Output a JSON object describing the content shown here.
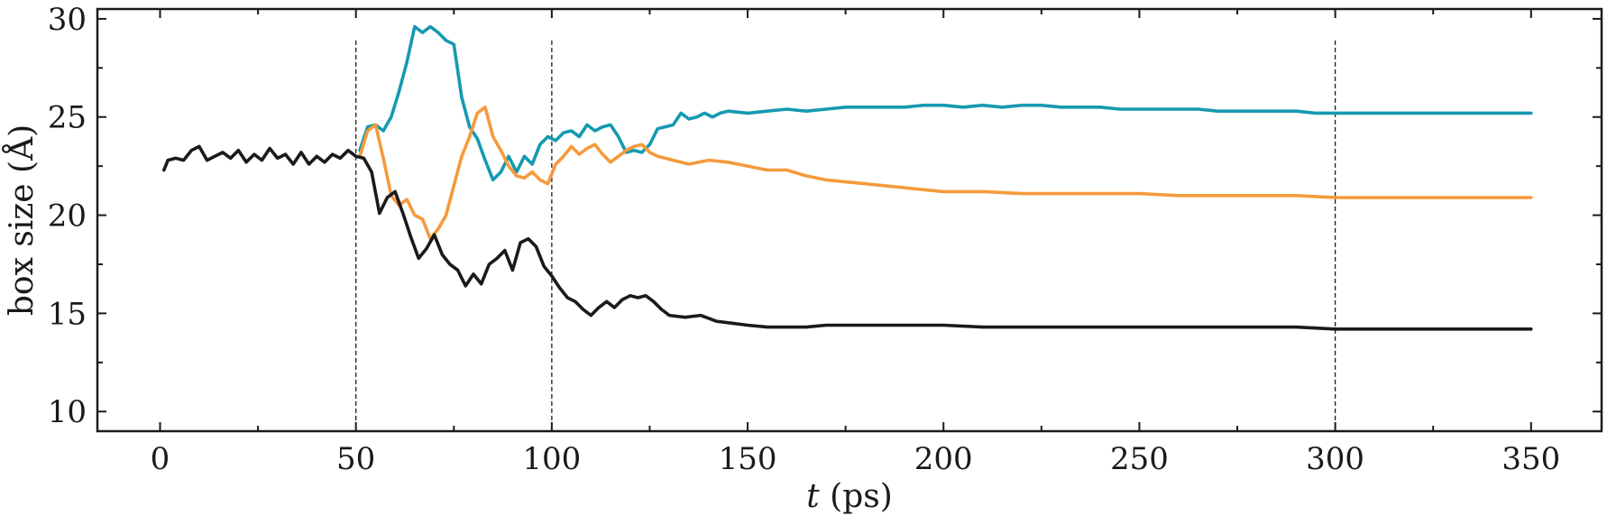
{
  "chart_data": {
    "type": "line",
    "xlabel_italic": "t",
    "xlabel_rest": " (ps)",
    "ylabel": "box size (Å)",
    "xlim": [
      -16,
      368
    ],
    "ylim": [
      9,
      30.5
    ],
    "xticks": [
      0,
      50,
      100,
      150,
      200,
      250,
      300,
      350
    ],
    "yticks": [
      10,
      15,
      20,
      25,
      30
    ],
    "vlines": [
      50,
      100,
      300
    ],
    "grid": false,
    "series": [
      {
        "color": "#159ab0",
        "points": [
          [
            51,
            23.3
          ],
          [
            53,
            24.5
          ],
          [
            55,
            24.6
          ],
          [
            57,
            24.3
          ],
          [
            59,
            25.0
          ],
          [
            61,
            26.3
          ],
          [
            63,
            27.8
          ],
          [
            65,
            29.6
          ],
          [
            67,
            29.3
          ],
          [
            69,
            29.6
          ],
          [
            71,
            29.3
          ],
          [
            73,
            28.9
          ],
          [
            75,
            28.7
          ],
          [
            77,
            26.0
          ],
          [
            79,
            24.5
          ],
          [
            81,
            23.9
          ],
          [
            83,
            22.8
          ],
          [
            85,
            21.8
          ],
          [
            87,
            22.2
          ],
          [
            89,
            23.0
          ],
          [
            91,
            22.2
          ],
          [
            93,
            23.0
          ],
          [
            95,
            22.6
          ],
          [
            97,
            23.6
          ],
          [
            99,
            24.0
          ],
          [
            101,
            23.8
          ],
          [
            103,
            24.2
          ],
          [
            105,
            24.3
          ],
          [
            107,
            24.0
          ],
          [
            109,
            24.6
          ],
          [
            111,
            24.3
          ],
          [
            113,
            24.5
          ],
          [
            115,
            24.6
          ],
          [
            117,
            24.0
          ],
          [
            119,
            23.2
          ],
          [
            121,
            23.3
          ],
          [
            123,
            23.2
          ],
          [
            125,
            23.6
          ],
          [
            127,
            24.4
          ],
          [
            129,
            24.5
          ],
          [
            131,
            24.6
          ],
          [
            133,
            25.2
          ],
          [
            135,
            24.9
          ],
          [
            137,
            25.0
          ],
          [
            139,
            25.2
          ],
          [
            141,
            25.0
          ],
          [
            143,
            25.2
          ],
          [
            145,
            25.3
          ],
          [
            150,
            25.2
          ],
          [
            155,
            25.3
          ],
          [
            160,
            25.4
          ],
          [
            165,
            25.3
          ],
          [
            170,
            25.4
          ],
          [
            175,
            25.5
          ],
          [
            180,
            25.5
          ],
          [
            185,
            25.5
          ],
          [
            190,
            25.5
          ],
          [
            195,
            25.6
          ],
          [
            200,
            25.6
          ],
          [
            205,
            25.5
          ],
          [
            210,
            25.6
          ],
          [
            215,
            25.5
          ],
          [
            220,
            25.6
          ],
          [
            225,
            25.6
          ],
          [
            230,
            25.5
          ],
          [
            235,
            25.5
          ],
          [
            240,
            25.5
          ],
          [
            245,
            25.4
          ],
          [
            250,
            25.4
          ],
          [
            255,
            25.4
          ],
          [
            260,
            25.4
          ],
          [
            265,
            25.4
          ],
          [
            270,
            25.3
          ],
          [
            275,
            25.3
          ],
          [
            280,
            25.3
          ],
          [
            285,
            25.3
          ],
          [
            290,
            25.3
          ],
          [
            295,
            25.2
          ],
          [
            300,
            25.2
          ],
          [
            310,
            25.2
          ],
          [
            320,
            25.2
          ],
          [
            330,
            25.2
          ],
          [
            340,
            25.2
          ],
          [
            350,
            25.2
          ]
        ]
      },
      {
        "color": "#f59a3c",
        "points": [
          [
            51,
            23.0
          ],
          [
            53,
            24.3
          ],
          [
            55,
            24.6
          ],
          [
            57,
            22.9
          ],
          [
            59,
            21.0
          ],
          [
            61,
            20.5
          ],
          [
            63,
            20.8
          ],
          [
            65,
            20.0
          ],
          [
            67,
            19.8
          ],
          [
            69,
            18.8
          ],
          [
            71,
            19.3
          ],
          [
            73,
            20.0
          ],
          [
            75,
            21.5
          ],
          [
            77,
            23.0
          ],
          [
            79,
            24.0
          ],
          [
            81,
            25.2
          ],
          [
            83,
            25.5
          ],
          [
            85,
            24.0
          ],
          [
            87,
            23.3
          ],
          [
            89,
            22.5
          ],
          [
            91,
            22.0
          ],
          [
            93,
            21.9
          ],
          [
            95,
            22.2
          ],
          [
            97,
            21.8
          ],
          [
            99,
            21.6
          ],
          [
            101,
            22.6
          ],
          [
            103,
            23.0
          ],
          [
            105,
            23.5
          ],
          [
            107,
            23.1
          ],
          [
            109,
            23.4
          ],
          [
            111,
            23.6
          ],
          [
            113,
            23.1
          ],
          [
            115,
            22.7
          ],
          [
            117,
            23.0
          ],
          [
            119,
            23.3
          ],
          [
            121,
            23.5
          ],
          [
            123,
            23.6
          ],
          [
            125,
            23.2
          ],
          [
            127,
            23.0
          ],
          [
            129,
            22.9
          ],
          [
            131,
            22.8
          ],
          [
            135,
            22.6
          ],
          [
            140,
            22.8
          ],
          [
            145,
            22.7
          ],
          [
            150,
            22.5
          ],
          [
            155,
            22.3
          ],
          [
            160,
            22.3
          ],
          [
            165,
            22.0
          ],
          [
            170,
            21.8
          ],
          [
            175,
            21.7
          ],
          [
            180,
            21.6
          ],
          [
            185,
            21.5
          ],
          [
            190,
            21.4
          ],
          [
            195,
            21.3
          ],
          [
            200,
            21.2
          ],
          [
            205,
            21.2
          ],
          [
            210,
            21.2
          ],
          [
            220,
            21.1
          ],
          [
            230,
            21.1
          ],
          [
            240,
            21.1
          ],
          [
            250,
            21.1
          ],
          [
            260,
            21.0
          ],
          [
            270,
            21.0
          ],
          [
            280,
            21.0
          ],
          [
            290,
            21.0
          ],
          [
            300,
            20.9
          ],
          [
            310,
            20.9
          ],
          [
            320,
            20.9
          ],
          [
            330,
            20.9
          ],
          [
            340,
            20.9
          ],
          [
            350,
            20.9
          ]
        ]
      },
      {
        "color": "#1a1a1a",
        "points": [
          [
            1,
            22.3
          ],
          [
            2,
            22.8
          ],
          [
            4,
            22.9
          ],
          [
            6,
            22.8
          ],
          [
            8,
            23.3
          ],
          [
            10,
            23.5
          ],
          [
            12,
            22.8
          ],
          [
            14,
            23.0
          ],
          [
            16,
            23.2
          ],
          [
            18,
            22.9
          ],
          [
            20,
            23.3
          ],
          [
            22,
            22.7
          ],
          [
            24,
            23.1
          ],
          [
            26,
            22.8
          ],
          [
            28,
            23.4
          ],
          [
            30,
            22.9
          ],
          [
            32,
            23.1
          ],
          [
            34,
            22.6
          ],
          [
            36,
            23.2
          ],
          [
            38,
            22.6
          ],
          [
            40,
            23.0
          ],
          [
            42,
            22.7
          ],
          [
            44,
            23.1
          ],
          [
            46,
            22.9
          ],
          [
            48,
            23.3
          ],
          [
            50,
            23.0
          ],
          [
            52,
            22.9
          ],
          [
            54,
            22.2
          ],
          [
            56,
            20.1
          ],
          [
            58,
            20.9
          ],
          [
            60,
            21.2
          ],
          [
            62,
            20.1
          ],
          [
            64,
            18.9
          ],
          [
            66,
            17.8
          ],
          [
            68,
            18.3
          ],
          [
            70,
            19.0
          ],
          [
            72,
            18.0
          ],
          [
            74,
            17.5
          ],
          [
            76,
            17.2
          ],
          [
            78,
            16.4
          ],
          [
            80,
            17.0
          ],
          [
            82,
            16.5
          ],
          [
            84,
            17.5
          ],
          [
            86,
            17.8
          ],
          [
            88,
            18.2
          ],
          [
            90,
            17.2
          ],
          [
            92,
            18.6
          ],
          [
            94,
            18.8
          ],
          [
            96,
            18.4
          ],
          [
            98,
            17.4
          ],
          [
            100,
            16.9
          ],
          [
            102,
            16.3
          ],
          [
            104,
            15.8
          ],
          [
            106,
            15.6
          ],
          [
            108,
            15.2
          ],
          [
            110,
            14.9
          ],
          [
            112,
            15.3
          ],
          [
            114,
            15.6
          ],
          [
            116,
            15.3
          ],
          [
            118,
            15.7
          ],
          [
            120,
            15.9
          ],
          [
            122,
            15.8
          ],
          [
            124,
            15.9
          ],
          [
            126,
            15.6
          ],
          [
            128,
            15.2
          ],
          [
            130,
            14.9
          ],
          [
            134,
            14.8
          ],
          [
            138,
            14.9
          ],
          [
            142,
            14.6
          ],
          [
            146,
            14.5
          ],
          [
            150,
            14.4
          ],
          [
            155,
            14.3
          ],
          [
            160,
            14.3
          ],
          [
            165,
            14.3
          ],
          [
            170,
            14.4
          ],
          [
            175,
            14.4
          ],
          [
            180,
            14.4
          ],
          [
            190,
            14.4
          ],
          [
            200,
            14.4
          ],
          [
            210,
            14.3
          ],
          [
            220,
            14.3
          ],
          [
            230,
            14.3
          ],
          [
            240,
            14.3
          ],
          [
            250,
            14.3
          ],
          [
            260,
            14.3
          ],
          [
            270,
            14.3
          ],
          [
            280,
            14.3
          ],
          [
            290,
            14.3
          ],
          [
            300,
            14.2
          ],
          [
            310,
            14.2
          ],
          [
            320,
            14.2
          ],
          [
            330,
            14.2
          ],
          [
            340,
            14.2
          ],
          [
            350,
            14.2
          ]
        ]
      }
    ]
  }
}
